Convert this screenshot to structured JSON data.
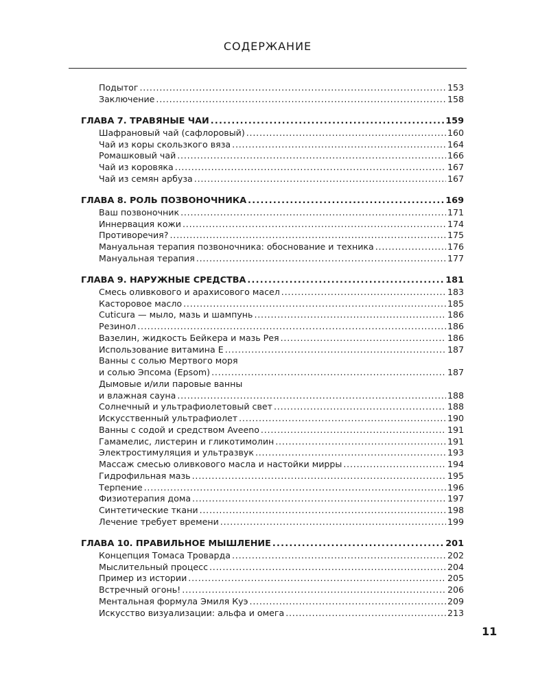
{
  "header": {
    "title": "СОДЕРЖАНИЕ"
  },
  "toc": [
    {
      "chapter": null,
      "entries": [
        {
          "text": "Подытог",
          "page": "153"
        },
        {
          "text": "Заключение",
          "page": "158"
        }
      ]
    },
    {
      "chapter": {
        "text": "ГЛАВА 7. ТРАВЯНЫЕ ЧАИ",
        "page": "159"
      },
      "entries": [
        {
          "text": "Шафрановый чай (сафлоровый)",
          "page": "160"
        },
        {
          "text": "Чай из коры скользкого вяза",
          "page": "164"
        },
        {
          "text": "Ромашковый чай",
          "page": "166"
        },
        {
          "text": "Чай из коровяка",
          "page": "167"
        },
        {
          "text": "Чай из семян арбуза",
          "page": "167"
        }
      ]
    },
    {
      "chapter": {
        "text": "ГЛАВА 8. РОЛЬ ПОЗВОНОЧНИКА",
        "page": "169"
      },
      "entries": [
        {
          "text": "Ваш позвоночник",
          "page": "171"
        },
        {
          "text": "Иннервация кожи",
          "page": "174"
        },
        {
          "text": "Противоречия?",
          "page": "175"
        },
        {
          "text": "Мануальная терапия позвоночника: обоснование и техника",
          "page": "176"
        },
        {
          "text": "Мануальная терапия",
          "page": "177"
        }
      ]
    },
    {
      "chapter": {
        "text": "ГЛАВА 9. НАРУЖНЫЕ СРЕДСТВА",
        "page": "181"
      },
      "entries": [
        {
          "text": "Смесь оливкового и арахисового масел",
          "page": "183"
        },
        {
          "text": "Касторовое масло",
          "page": "185"
        },
        {
          "text": "Cuticura — мыло, мазь и шампунь",
          "page": "186"
        },
        {
          "text": "Резинол",
          "page": "186"
        },
        {
          "text": "Вазелин, жидкость Бейкера и мазь Рея",
          "page": "186"
        },
        {
          "text": "Использование витамина Е",
          "page": "187"
        },
        {
          "text": "Ванны с солью Мертвого моря",
          "text2": "и солью Эпсома (Epsom)",
          "page": "187"
        },
        {
          "text": "Дымовые и/или паровые ванны",
          "text2": "и влажная сауна",
          "page": "188"
        },
        {
          "text": "Солнечный и ультрафиолетовый свет",
          "page": "188"
        },
        {
          "text": "Искусственный ультрафиолет",
          "page": "190"
        },
        {
          "text": "Ванны с содой и средством Aveeno",
          "page": "191"
        },
        {
          "text": "Гамамелис, листерин и гликотимолин",
          "page": "191"
        },
        {
          "text": "Электростимуляция и ультразвук",
          "page": "193"
        },
        {
          "text": "Массаж смесью оливкового масла и настойки мирры",
          "page": "194"
        },
        {
          "text": "Гидрофильная мазь",
          "page": "195"
        },
        {
          "text": "Терпение",
          "page": "196"
        },
        {
          "text": "Физиотерапия дома",
          "page": "197"
        },
        {
          "text": "Синтетические ткани",
          "page": "198"
        },
        {
          "text": "Лечение требует времени",
          "page": "199"
        }
      ]
    },
    {
      "chapter": {
        "text": "ГЛАВА 10. ПРАВИЛЬНОЕ МЫШЛЕНИЕ",
        "page": "201"
      },
      "entries": [
        {
          "text": "Концепция Томаса Троварда",
          "page": "202"
        },
        {
          "text": "Мыслительный процесс",
          "page": "204"
        },
        {
          "text": "Пример из истории",
          "page": "205"
        },
        {
          "text": "Встречный огонь!",
          "page": "206"
        },
        {
          "text": "Ментальная формула Эмиля Куэ",
          "page": "209"
        },
        {
          "text": "Искусство визуализации: альфа и омега",
          "page": "213"
        }
      ]
    }
  ],
  "footer": {
    "page_number": "11"
  }
}
